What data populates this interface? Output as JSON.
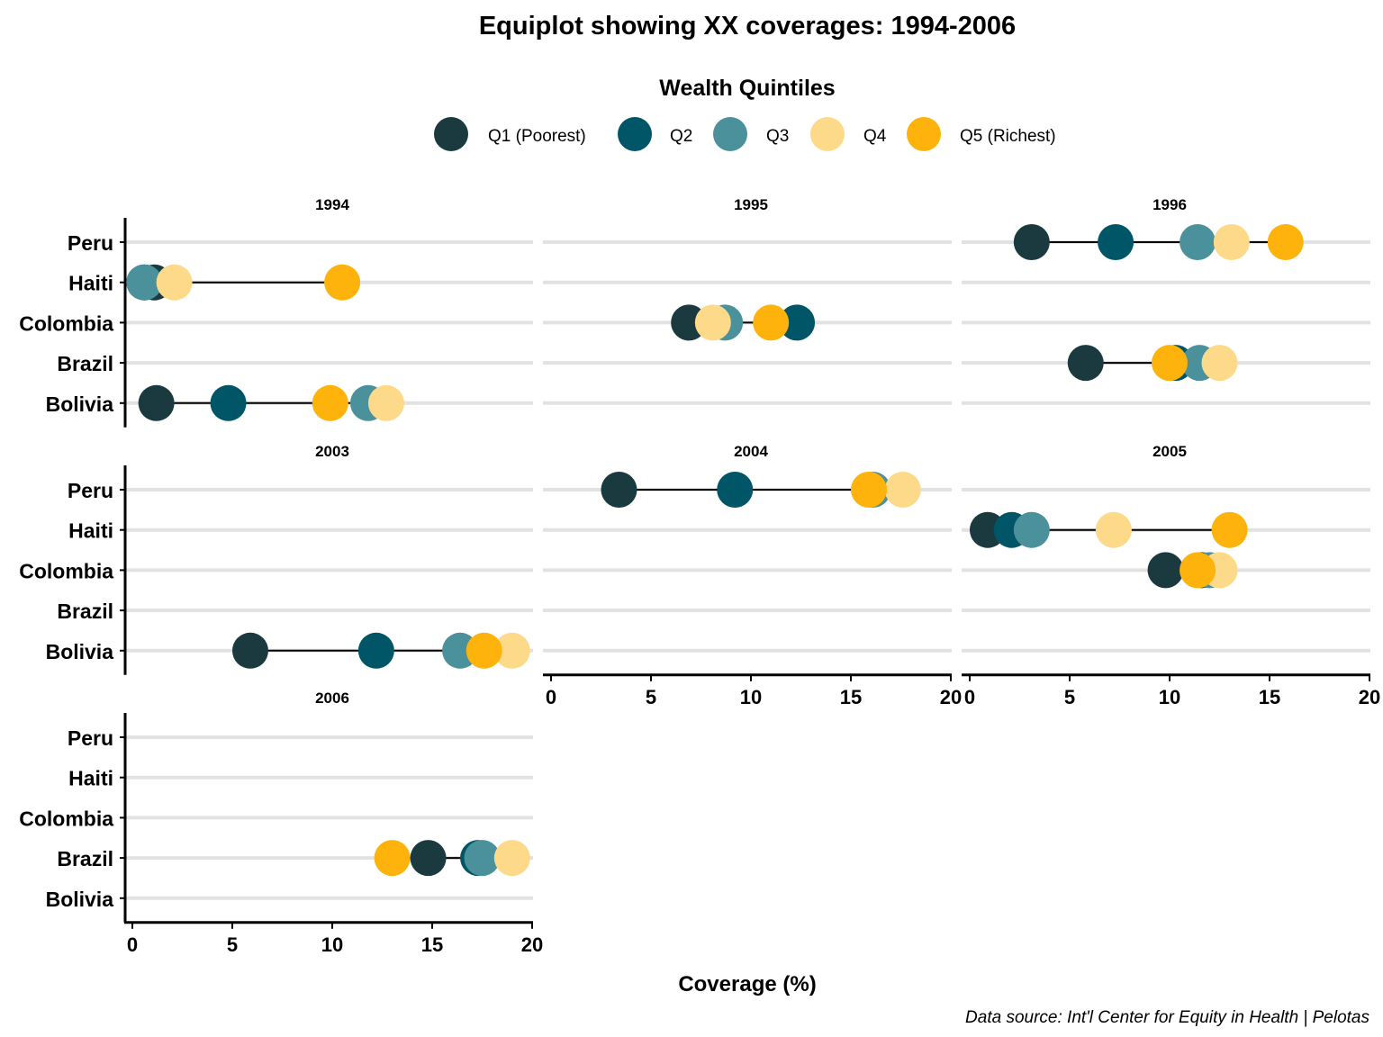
{
  "chart_data": {
    "type": "scatter",
    "title": "Equiplot showing XX coverages: 1994-2006",
    "xlabel": "Coverage (%)",
    "ylabel": "",
    "caption": "Data source: Int'l Center for Equity in Health | Pelotas",
    "xlim": [
      0,
      20
    ],
    "x_ticks": [
      "0",
      "5",
      "10",
      "15",
      "20"
    ],
    "countries": [
      "Peru",
      "Haiti",
      "Colombia",
      "Brazil",
      "Bolivia"
    ],
    "legend": {
      "title": "Wealth Quintiles",
      "position": "top",
      "items": [
        {
          "label": "Q1 (Poorest)",
          "color": "#1b3a40"
        },
        {
          "label": "Q2",
          "color": "#005566"
        },
        {
          "label": "Q3",
          "color": "#4a919b"
        },
        {
          "label": "Q4",
          "color": "#fdd98a"
        },
        {
          "label": "Q5 (Richest)",
          "color": "#fdb20c"
        }
      ]
    },
    "panels": [
      {
        "year": "1994",
        "rows": [
          {
            "country": "Haiti",
            "q": [
              1.1,
              0.6,
              0.6,
              2.1,
              10.5
            ]
          },
          {
            "country": "Bolivia",
            "q": [
              1.2,
              4.8,
              11.8,
              12.7,
              9.9
            ]
          }
        ]
      },
      {
        "year": "1995",
        "rows": [
          {
            "country": "Colombia",
            "q": [
              6.9,
              12.3,
              8.7,
              8.1,
              11.0
            ]
          }
        ]
      },
      {
        "year": "1996",
        "rows": [
          {
            "country": "Peru",
            "q": [
              3.1,
              7.3,
              11.4,
              13.1,
              15.8
            ]
          },
          {
            "country": "Brazil",
            "q": [
              5.8,
              10.3,
              11.5,
              12.5,
              10.0
            ]
          }
        ]
      },
      {
        "year": "2003",
        "rows": [
          {
            "country": "Bolivia",
            "q": [
              5.9,
              12.2,
              16.4,
              19.0,
              17.6
            ]
          }
        ]
      },
      {
        "year": "2004",
        "rows": [
          {
            "country": "Peru",
            "q": [
              3.4,
              9.2,
              16.1,
              17.6,
              15.9
            ]
          }
        ]
      },
      {
        "year": "2005",
        "rows": [
          {
            "country": "Haiti",
            "q": [
              0.9,
              2.1,
              3.1,
              7.2,
              13.0
            ]
          },
          {
            "country": "Colombia",
            "q": [
              9.8,
              11.6,
              12.0,
              12.5,
              11.4
            ]
          }
        ]
      },
      {
        "year": "2006",
        "rows": [
          {
            "country": "Brazil",
            "q": [
              14.8,
              17.3,
              17.5,
              19.0,
              13.0
            ]
          }
        ]
      }
    ]
  }
}
